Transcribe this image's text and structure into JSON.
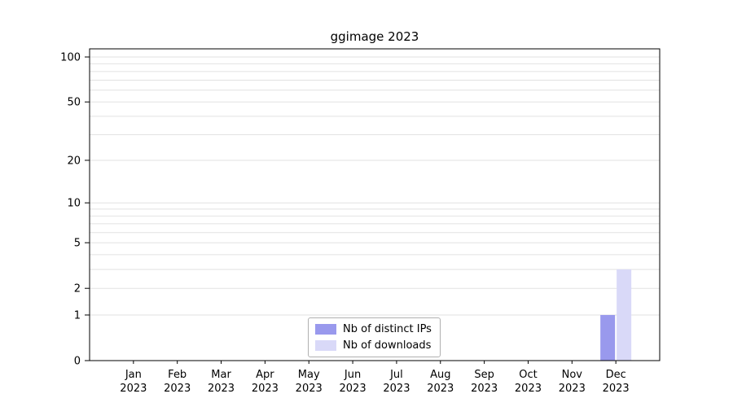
{
  "chart_data": {
    "type": "bar",
    "title": "ggimage 2023",
    "categories": [
      "Jan",
      "Feb",
      "Mar",
      "Apr",
      "May",
      "Jun",
      "Jul",
      "Aug",
      "Sep",
      "Oct",
      "Nov",
      "Dec"
    ],
    "year_label": "2023",
    "series": [
      {
        "name": "Nb of distinct IPs",
        "color": "#9999ed",
        "values": [
          0,
          0,
          0,
          0,
          0,
          0,
          0,
          0,
          0,
          0,
          0,
          1
        ]
      },
      {
        "name": "Nb of downloads",
        "color": "#d9d9f8",
        "values": [
          0,
          0,
          0,
          0,
          0,
          0,
          0,
          0,
          0,
          0,
          0,
          3
        ]
      }
    ],
    "y_ticks": [
      0,
      1,
      2,
      5,
      10,
      20,
      50,
      100
    ],
    "y_scale": "log1p",
    "ylim": [
      0,
      115
    ],
    "minor_gridlines": [
      1,
      2,
      3,
      4,
      5,
      6,
      7,
      8,
      9,
      10,
      20,
      30,
      40,
      50,
      60,
      70,
      80,
      90,
      100
    ],
    "grid": true,
    "legend_position": "bottom-center",
    "colors": {
      "gridline": "#e2e2e2",
      "axis_box": "#000000",
      "background": "#ffffff"
    }
  }
}
